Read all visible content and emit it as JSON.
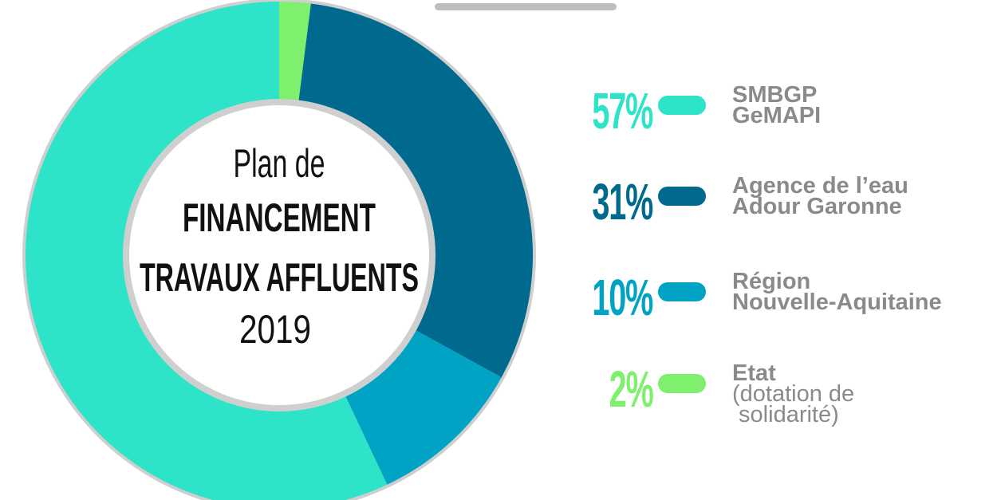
{
  "chart_data": {
    "type": "donut",
    "title_lines": [
      "Plan de",
      "FINANCEMENT",
      "TRAVAUX AFFLUENTS",
      "2019"
    ],
    "series": [
      {
        "name": "SMBGP\nGeMAPI",
        "color": "#2de3c8",
        "values": [
          57
        ],
        "value_labels": [
          "57%"
        ]
      },
      {
        "name": "Agence de l’eau\nAdour Garonne",
        "color": "#006a8e",
        "values": [
          31
        ],
        "value_labels": [
          "31%"
        ]
      },
      {
        "name": "Région\nNouvelle-Aquitaine",
        "color": "#00a3c4",
        "values": [
          10
        ],
        "value_labels": [
          "10%"
        ]
      },
      {
        "name": "Etat",
        "detail": "(dotation de\n solidarité)",
        "color": "#7ef06e",
        "values": [
          2
        ],
        "value_labels": [
          "2%"
        ]
      }
    ]
  }
}
